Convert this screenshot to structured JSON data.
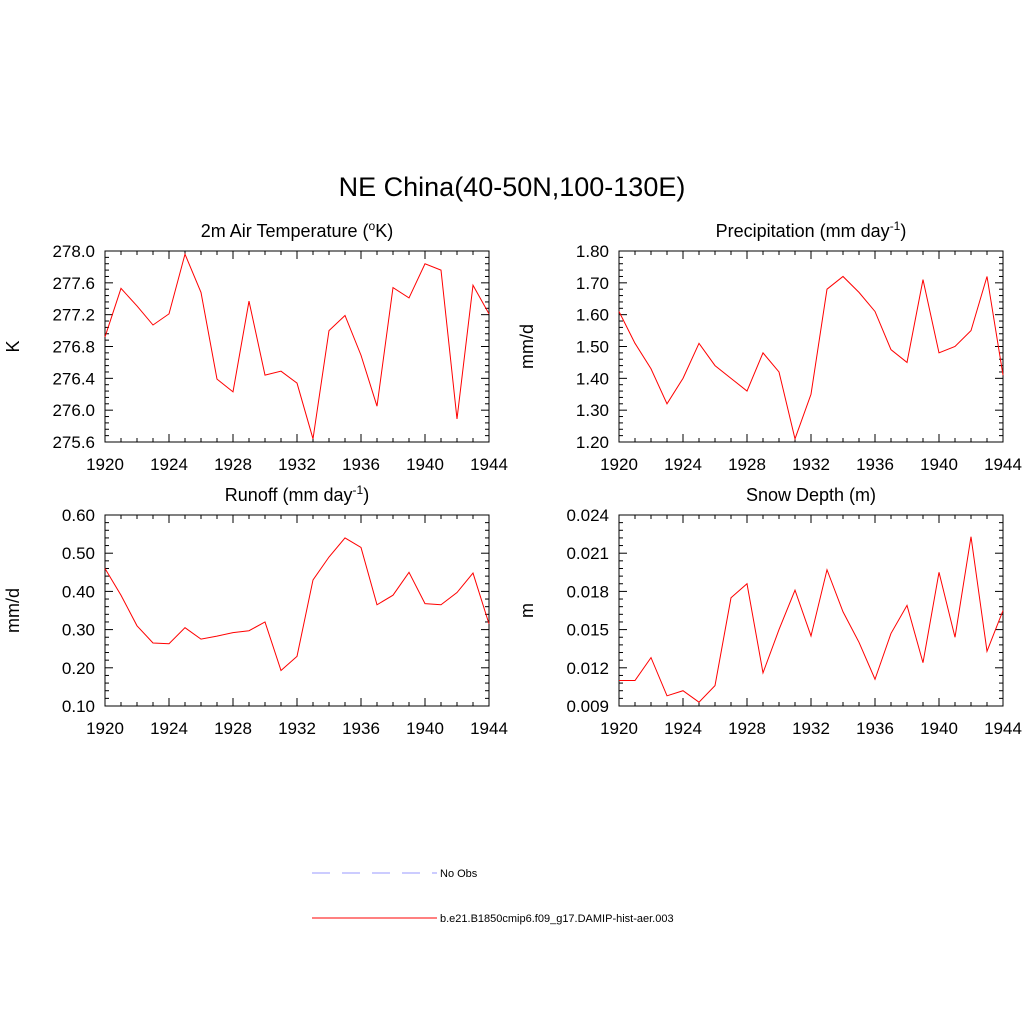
{
  "title": "NE China(40-50N,100-130E)",
  "colors": {
    "model": "#ff0000",
    "obs": "#9999ff",
    "axis": "#000000"
  },
  "chart_data": [
    {
      "type": "line",
      "title": "2m Air Temperature (oK)",
      "title_parts": {
        "before": "2m Air Temperature (",
        "sup": "o",
        "after": "K)"
      },
      "ylabel": "K",
      "xlim": [
        1920,
        1944
      ],
      "ylim": [
        275.6,
        278.0
      ],
      "x_ticks": [
        "1920",
        "1924",
        "1928",
        "1932",
        "1936",
        "1940",
        "1944"
      ],
      "y_ticks": [
        "275.6",
        "276.0",
        "276.4",
        "276.8",
        "277.2",
        "277.6",
        "278.0"
      ],
      "series": [
        {
          "name": "b.e21.B1850cmip6.f09_g17.DAMIP-hist-aer.003",
          "x": [
            1920,
            1921,
            1922,
            1923,
            1924,
            1925,
            1926,
            1927,
            1928,
            1929,
            1930,
            1931,
            1932,
            1933,
            1934,
            1935,
            1936,
            1937,
            1938,
            1939,
            1940,
            1941,
            1942,
            1943,
            1944
          ],
          "y": [
            276.92,
            277.53,
            277.31,
            277.07,
            277.21,
            277.96,
            277.48,
            276.39,
            276.23,
            277.37,
            276.44,
            276.49,
            276.34,
            275.64,
            277.0,
            277.19,
            276.69,
            276.05,
            277.54,
            277.41,
            277.84,
            277.76,
            275.89,
            277.57,
            277.21
          ]
        }
      ]
    },
    {
      "type": "line",
      "title": "Precipitation (mm day-1)",
      "title_parts": {
        "before": "Precipitation (mm day",
        "sup": "-1",
        "after": ")"
      },
      "ylabel": "mm/d",
      "xlim": [
        1920,
        1944
      ],
      "ylim": [
        1.2,
        1.8
      ],
      "x_ticks": [
        "1920",
        "1924",
        "1928",
        "1932",
        "1936",
        "1940",
        "1944"
      ],
      "y_ticks": [
        "1.20",
        "1.30",
        "1.40",
        "1.50",
        "1.60",
        "1.70",
        "1.80"
      ],
      "series": [
        {
          "name": "b.e21.B1850cmip6.f09_g17.DAMIP-hist-aer.003",
          "x": [
            1920,
            1921,
            1922,
            1923,
            1924,
            1925,
            1926,
            1927,
            1928,
            1929,
            1930,
            1931,
            1932,
            1933,
            1934,
            1935,
            1936,
            1937,
            1938,
            1939,
            1940,
            1941,
            1942,
            1943,
            1944
          ],
          "y": [
            1.61,
            1.51,
            1.43,
            1.32,
            1.4,
            1.51,
            1.44,
            1.4,
            1.36,
            1.48,
            1.42,
            1.21,
            1.35,
            1.68,
            1.72,
            1.67,
            1.61,
            1.49,
            1.45,
            1.71,
            1.48,
            1.5,
            1.55,
            1.72,
            1.41
          ]
        }
      ]
    },
    {
      "type": "line",
      "title": "Runoff (mm day-1)",
      "title_parts": {
        "before": "Runoff (mm day",
        "sup": "-1",
        "after": ")"
      },
      "ylabel": "mm/d",
      "xlim": [
        1920,
        1944
      ],
      "ylim": [
        0.1,
        0.6
      ],
      "x_ticks": [
        "1920",
        "1924",
        "1928",
        "1932",
        "1936",
        "1940",
        "1944"
      ],
      "y_ticks": [
        "0.10",
        "0.20",
        "0.30",
        "0.40",
        "0.50",
        "0.60"
      ],
      "series": [
        {
          "name": "b.e21.B1850cmip6.f09_g17.DAMIP-hist-aer.003",
          "x": [
            1920,
            1921,
            1922,
            1923,
            1924,
            1925,
            1926,
            1927,
            1928,
            1929,
            1930,
            1931,
            1932,
            1933,
            1934,
            1935,
            1936,
            1937,
            1938,
            1939,
            1940,
            1941,
            1942,
            1943,
            1944
          ],
          "y": [
            0.46,
            0.39,
            0.31,
            0.265,
            0.263,
            0.305,
            0.275,
            0.283,
            0.292,
            0.297,
            0.32,
            0.193,
            0.23,
            0.43,
            0.49,
            0.54,
            0.515,
            0.365,
            0.39,
            0.45,
            0.368,
            0.365,
            0.397,
            0.448,
            0.315
          ]
        }
      ]
    },
    {
      "type": "line",
      "title": "Snow Depth (m)",
      "title_parts": {
        "before": "Snow Depth (m)",
        "sup": "",
        "after": ""
      },
      "ylabel": "m",
      "xlim": [
        1920,
        1944
      ],
      "ylim": [
        0.009,
        0.024
      ],
      "x_ticks": [
        "1920",
        "1924",
        "1928",
        "1932",
        "1936",
        "1940",
        "1944"
      ],
      "y_ticks": [
        "0.009",
        "0.012",
        "0.015",
        "0.018",
        "0.021",
        "0.024"
      ],
      "series": [
        {
          "name": "b.e21.B1850cmip6.f09_g17.DAMIP-hist-aer.003",
          "x": [
            1920,
            1921,
            1922,
            1923,
            1924,
            1925,
            1926,
            1927,
            1928,
            1929,
            1930,
            1931,
            1932,
            1933,
            1934,
            1935,
            1936,
            1937,
            1938,
            1939,
            1940,
            1941,
            1942,
            1943,
            1944
          ],
          "y": [
            0.011,
            0.011,
            0.0128,
            0.0098,
            0.0102,
            0.0093,
            0.0106,
            0.0175,
            0.0186,
            0.0116,
            0.015,
            0.0181,
            0.0145,
            0.0197,
            0.0164,
            0.014,
            0.0111,
            0.0147,
            0.0169,
            0.0124,
            0.0195,
            0.0144,
            0.0223,
            0.0133,
            0.0165
          ]
        }
      ]
    }
  ],
  "legend": [
    {
      "label": "No Obs",
      "style": "dashed",
      "color": "#9999ff"
    },
    {
      "label": "b.e21.B1850cmip6.f09_g17.DAMIP-hist-aer.003",
      "style": "solid",
      "color": "#ff0000"
    }
  ]
}
